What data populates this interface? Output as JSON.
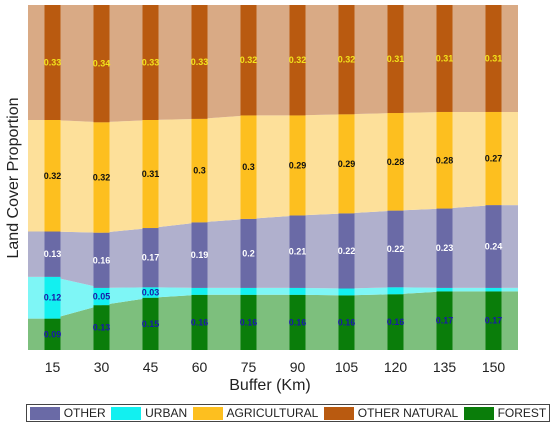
{
  "chart_data": {
    "type": "bar",
    "stacked": true,
    "xlabel": "Buffer (Km)",
    "ylabel": "Land Cover Proportion",
    "ylim": [
      0,
      1
    ],
    "categories": [
      "15",
      "30",
      "45",
      "60",
      "75",
      "90",
      "105",
      "120",
      "135",
      "150"
    ],
    "series": [
      {
        "name": "FOREST",
        "color": "#0a7d0a",
        "area_color": "#7dbf7d",
        "label_color": "#1a1aa8",
        "values": [
          0.09,
          0.13,
          0.15,
          0.16,
          0.16,
          0.16,
          0.16,
          0.16,
          0.17,
          0.17
        ]
      },
      {
        "name": "URBAN",
        "color": "#12f0f0",
        "area_color": "#7ef6f6",
        "label_color": "#1a1aa8",
        "values": [
          0.12,
          0.05,
          0.03,
          0.02,
          0.02,
          0.02,
          0.02,
          0.02,
          0.01,
          0.01
        ]
      },
      {
        "name": "OTHER",
        "color": "#6a6aa6",
        "area_color": "#b0b0cd",
        "label_color": "#ffffff",
        "values": [
          0.13,
          0.16,
          0.17,
          0.19,
          0.2,
          0.21,
          0.22,
          0.22,
          0.23,
          0.24
        ]
      },
      {
        "name": "AGRICULTURAL",
        "color": "#fdbf1f",
        "area_color": "#fde09a",
        "label_color": "#111111",
        "values": [
          0.32,
          0.32,
          0.31,
          0.3,
          0.3,
          0.29,
          0.29,
          0.28,
          0.28,
          0.27
        ]
      },
      {
        "name": "OTHER NATURAL",
        "color": "#b95a10",
        "area_color": "#d9aa85",
        "label_color": "#f2e21c",
        "values": [
          0.33,
          0.34,
          0.33,
          0.33,
          0.32,
          0.32,
          0.32,
          0.31,
          0.31,
          0.31
        ]
      }
    ],
    "value_labels": {
      "FOREST": [
        "0.09",
        "0.13",
        "0.15",
        "0.16",
        "0.16",
        "0.16",
        "0.16",
        "0.16",
        "0.17",
        "0.17"
      ],
      "URBAN": [
        "0.12",
        "0.05",
        "0.03",
        "",
        "",
        "",
        "",
        "",
        "",
        ""
      ],
      "OTHER": [
        "0.13",
        "0.16",
        "0.17",
        "0.19",
        "0.2",
        "0.21",
        "0.22",
        "0.22",
        "0.23",
        "0.24"
      ],
      "AGRICULTURAL": [
        "0.32",
        "0.32",
        "0.31",
        "0.3",
        "0.3",
        "0.29",
        "0.29",
        "0.28",
        "0.28",
        "0.27"
      ],
      "OTHER NATURAL": [
        "0.33",
        "0.34",
        "0.33",
        "0.33",
        "0.32",
        "0.32",
        "0.32",
        "0.31",
        "0.31",
        "0.31"
      ]
    },
    "legend": {
      "placement": "bottom",
      "entries": [
        "OTHER",
        "URBAN",
        "AGRICULTURAL",
        "OTHER NATURAL",
        "FOREST"
      ]
    },
    "grid": false
  }
}
